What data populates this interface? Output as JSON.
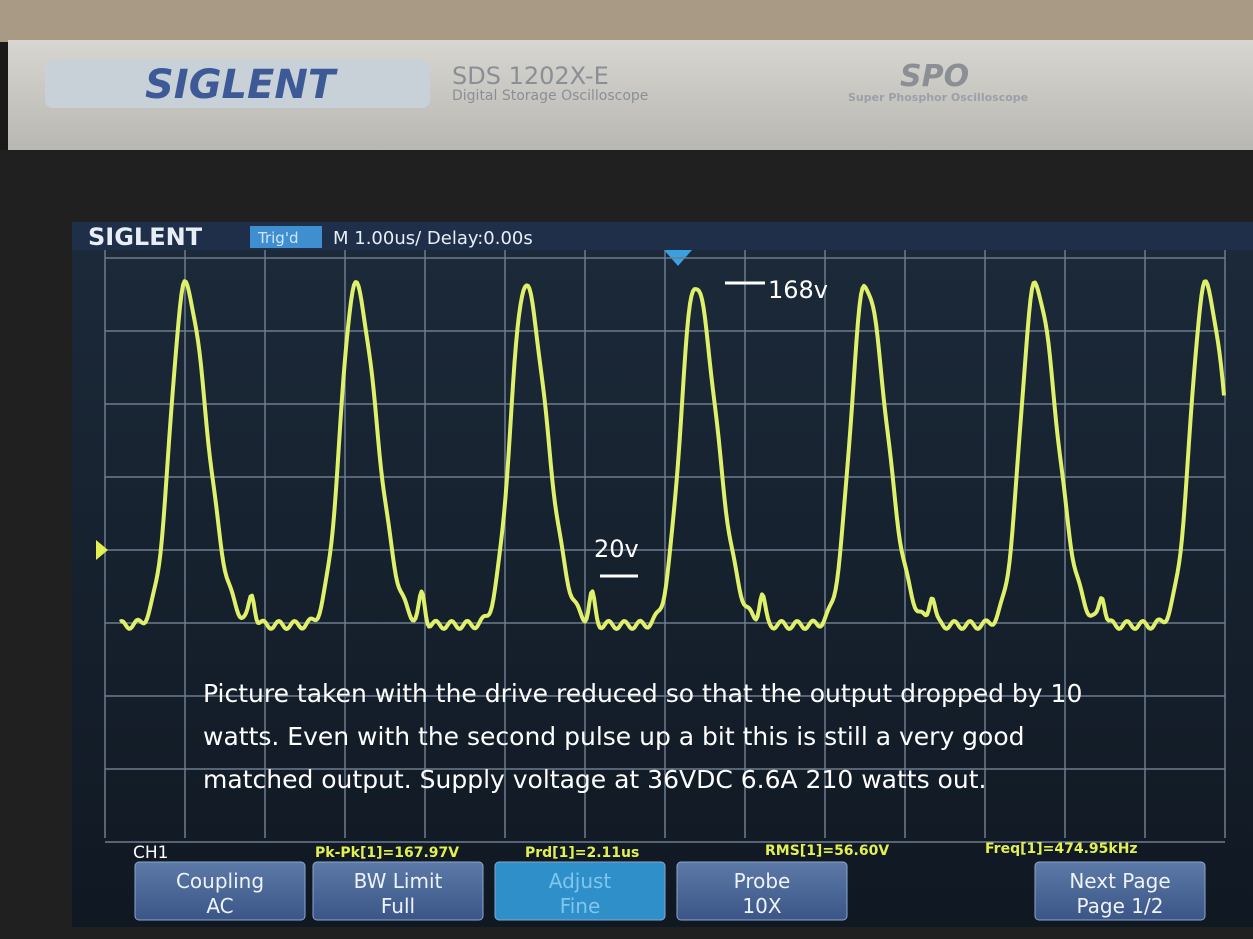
{
  "bezel": {
    "brand": "SIGLENT",
    "model": "SDS 1202X-E",
    "model_subtitle": "Digital Storage Oscilloscope",
    "spo_logo": "SPO",
    "spo_subtitle": "Super Phosphor Oscilloscope"
  },
  "screen": {
    "header": {
      "brand": "SIGLENT",
      "trigger_status": "Trig'd",
      "timebase": "M 1.00us/ Delay:0.00s"
    },
    "annotations": {
      "peak_label": "168v",
      "base_label": "20v",
      "caption": [
        "Picture taken with the drive reduced so that the output dropped by 10",
        "watts.  Even with the second pulse up a bit this is still a very good",
        "matched output.  Supply voltage at 36VDC 6.6A 210 watts out."
      ]
    },
    "measurements": {
      "channel": "CH1",
      "items": [
        "Pk-Pk[1]=167.97V",
        "Prd[1]=2.11us",
        "RMS[1]=56.60V",
        "Freq[1]=474.95kHz"
      ]
    },
    "softkeys": [
      [
        "Coupling",
        "AC"
      ],
      [
        "BW Limit",
        "Full"
      ],
      [
        "Adjust",
        "Fine"
      ],
      [
        "Probe",
        "10X"
      ],
      [
        "Next Page",
        "Page 1/2"
      ]
    ]
  }
}
